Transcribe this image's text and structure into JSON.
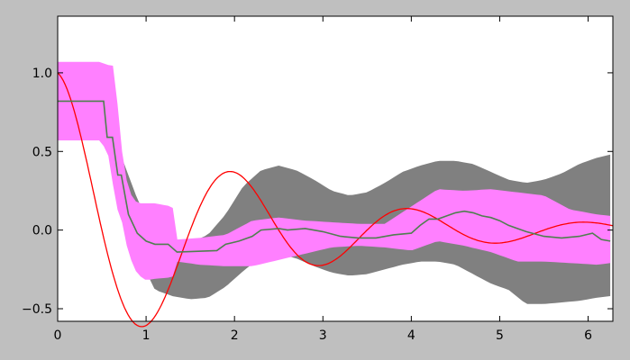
{
  "chart_data": {
    "type": "line",
    "title": "",
    "xlabel": "",
    "ylabel": "",
    "xlim": [
      0,
      6.28
    ],
    "ylim": [
      -0.58,
      1.36
    ],
    "grid": false,
    "legend": "none",
    "x_ticks": [
      0,
      1,
      2,
      3,
      4,
      5,
      6
    ],
    "x_tick_labels": [
      "0",
      "1",
      "2",
      "3",
      "4",
      "5",
      "6"
    ],
    "y_ticks": [
      1.0,
      0.5,
      0.0,
      -0.5
    ],
    "y_tick_labels": [
      "1.0",
      "0.5",
      "0.0",
      "−0.5"
    ],
    "colors": {
      "background": "#bfbfbf",
      "plot_bg": "#ffffff",
      "gray_band": "#808080",
      "magenta_band": "#ff80ff",
      "red_line": "#ff0000",
      "green_line": "#4f7f4f"
    },
    "series": [
      {
        "kind": "band",
        "color": "#808080",
        "x": [
          0.0,
          0.5,
          0.7,
          0.9,
          1.1,
          1.3,
          1.5,
          1.7,
          1.9,
          2.1,
          2.3,
          2.5,
          2.7,
          2.9,
          3.1,
          3.3,
          3.5,
          3.7,
          3.9,
          4.1,
          4.3,
          4.5,
          4.7,
          4.9,
          5.1,
          5.3,
          5.5,
          5.7,
          5.9,
          6.1,
          6.25
        ],
        "upper": [
          1.0,
          0.8,
          0.5,
          0.2,
          -0.05,
          -0.13,
          -0.08,
          -0.03,
          0.1,
          0.28,
          0.38,
          0.41,
          0.38,
          0.32,
          0.25,
          0.22,
          0.24,
          0.3,
          0.37,
          0.41,
          0.44,
          0.44,
          0.42,
          0.37,
          0.32,
          0.3,
          0.32,
          0.36,
          0.42,
          0.46,
          0.48
        ],
        "lower": [
          1.0,
          0.8,
          0.4,
          -0.15,
          -0.38,
          -0.42,
          -0.44,
          -0.43,
          -0.36,
          -0.26,
          -0.17,
          -0.15,
          -0.18,
          -0.23,
          -0.27,
          -0.29,
          -0.28,
          -0.25,
          -0.22,
          -0.2,
          -0.2,
          -0.22,
          -0.28,
          -0.34,
          -0.38,
          -0.47,
          -0.47,
          -0.46,
          -0.45,
          -0.43,
          -0.42
        ]
      },
      {
        "kind": "band",
        "color": "#ff80ff",
        "x": [
          0.0,
          0.3,
          0.5,
          0.54,
          0.6,
          0.65,
          0.7,
          0.8,
          0.9,
          1.0,
          1.1,
          1.3,
          1.35,
          1.6,
          1.9,
          2.2,
          2.5,
          2.8,
          3.1,
          3.4,
          3.7,
          4.0,
          4.3,
          4.6,
          4.9,
          5.2,
          5.5,
          5.8,
          6.1,
          6.25
        ],
        "upper": [
          1.07,
          1.07,
          1.07,
          1.05,
          1.05,
          1.04,
          0.6,
          0.25,
          0.17,
          0.17,
          0.17,
          0.15,
          -0.06,
          -0.05,
          -0.03,
          0.06,
          0.08,
          0.06,
          0.05,
          0.04,
          0.04,
          0.15,
          0.26,
          0.25,
          0.26,
          0.24,
          0.22,
          0.13,
          0.1,
          0.09
        ],
        "lower": [
          0.57,
          0.57,
          0.57,
          0.5,
          0.45,
          0.13,
          0.13,
          -0.15,
          -0.28,
          -0.32,
          -0.31,
          -0.3,
          -0.2,
          -0.22,
          -0.23,
          -0.23,
          -0.19,
          -0.15,
          -0.11,
          -0.1,
          -0.11,
          -0.13,
          -0.07,
          -0.1,
          -0.14,
          -0.2,
          -0.2,
          -0.21,
          -0.22,
          -0.21
        ]
      },
      {
        "kind": "line",
        "color": "#ff0000",
        "function": "exp(-0.5x)cos(pi x)"
      },
      {
        "kind": "step",
        "color": "#4f7f4f",
        "x": [
          0.0,
          0.52,
          0.56,
          0.62,
          0.68,
          0.72,
          0.8,
          0.9,
          1.0,
          1.1,
          1.25,
          1.35,
          1.8,
          1.9,
          2.05,
          2.2,
          2.3,
          2.5,
          2.6,
          2.8,
          3.0,
          3.2,
          3.4,
          3.6,
          3.8,
          4.0,
          4.1,
          4.2,
          4.3,
          4.4,
          4.5,
          4.6,
          4.7,
          4.8,
          4.9,
          5.0,
          5.1,
          5.3,
          5.5,
          5.7,
          5.9,
          6.05,
          6.15,
          6.25
        ],
        "y": [
          0.82,
          0.82,
          0.59,
          0.59,
          0.35,
          0.35,
          0.1,
          -0.02,
          -0.07,
          -0.09,
          -0.09,
          -0.14,
          -0.13,
          -0.09,
          -0.07,
          -0.04,
          0.0,
          0.01,
          0.0,
          0.01,
          -0.01,
          -0.04,
          -0.05,
          -0.05,
          -0.03,
          -0.02,
          0.03,
          0.07,
          0.07,
          0.09,
          0.11,
          0.12,
          0.11,
          0.09,
          0.08,
          0.06,
          0.03,
          -0.01,
          -0.04,
          -0.05,
          -0.04,
          -0.02,
          -0.06,
          -0.07
        ]
      }
    ]
  }
}
